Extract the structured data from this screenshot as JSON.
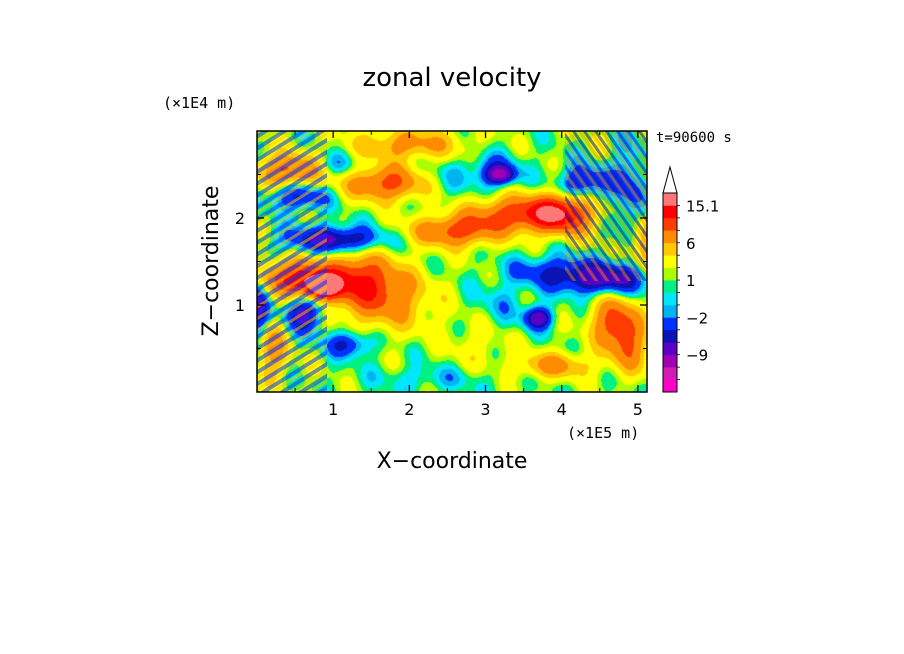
{
  "chart_data": {
    "type": "heatmap",
    "title": "zonal velocity",
    "xlabel": "X−coordinate",
    "ylabel": "Z−coordinate",
    "x_unit": "(×1E5 m)",
    "y_unit": "(×1E4 m)",
    "time_label": "t=90600 s",
    "xlim": [
      0,
      5.12
    ],
    "ylim": [
      0,
      3.0
    ],
    "x_ticks": [
      1,
      2,
      3,
      4,
      5
    ],
    "x_tick_labels": [
      "1",
      "2",
      "3",
      "4",
      "5"
    ],
    "y_ticks": [
      1,
      2
    ],
    "y_tick_labels": [
      "1",
      "2"
    ],
    "colorbar": {
      "levels": [
        -15,
        -12,
        -9,
        -6,
        -4,
        -2,
        -1,
        0,
        1,
        2,
        4,
        6,
        9,
        12,
        15.1
      ],
      "colors": [
        "#ff00c8",
        "#d21ab4",
        "#a000b4",
        "#5a00c8",
        "#0a14b4",
        "#0032ff",
        "#00b4f0",
        "#00e6ff",
        "#00f082",
        "#aaff00",
        "#ffff00",
        "#ffc800",
        "#ff8c00",
        "#ff3c00",
        "#ff0000",
        "#ff7878"
      ],
      "labels": [
        {
          "value": 15.1,
          "text": "15.1"
        },
        {
          "value": 6,
          "text": "6"
        },
        {
          "value": 1,
          "text": "1"
        },
        {
          "value": -2,
          "text": "−2"
        },
        {
          "value": -9,
          "text": "−9"
        }
      ],
      "extend_top": true
    },
    "features": [
      {
        "x": 0.0,
        "z": 1.0,
        "u": -9,
        "sx": 0.15,
        "sz": 0.35
      },
      {
        "x": 0.2,
        "z": 0.5,
        "u": 6,
        "sx": 0.2,
        "sz": 0.35
      },
      {
        "x": 0.5,
        "z": 1.3,
        "u": 12,
        "sx": 0.5,
        "sz": 0.2
      },
      {
        "x": 0.85,
        "z": 1.2,
        "u": 15.1,
        "sx": 0.2,
        "sz": 0.12
      },
      {
        "x": 1.3,
        "z": 1.3,
        "u": 9,
        "sx": 0.5,
        "sz": 0.3
      },
      {
        "x": 1.7,
        "z": 1.05,
        "u": 6,
        "sx": 0.6,
        "sz": 0.35
      },
      {
        "x": 1.0,
        "z": 1.75,
        "u": -9,
        "sx": 0.6,
        "sz": 0.15
      },
      {
        "x": 0.55,
        "z": 2.25,
        "u": -6,
        "sx": 0.4,
        "sz": 0.15
      },
      {
        "x": 0.45,
        "z": 2.55,
        "u": 9,
        "sx": 0.45,
        "sz": 0.18
      },
      {
        "x": 0.6,
        "z": 0.9,
        "u": -9,
        "sx": 0.25,
        "sz": 0.2
      },
      {
        "x": 1.2,
        "z": 0.55,
        "u": -6,
        "sx": 0.3,
        "sz": 0.15
      },
      {
        "x": 1.7,
        "z": 2.4,
        "u": 9,
        "sx": 0.55,
        "sz": 0.2
      },
      {
        "x": 1.0,
        "z": 2.6,
        "u": -4,
        "sx": 0.3,
        "sz": 0.15
      },
      {
        "x": 2.6,
        "z": 1.85,
        "u": 9,
        "sx": 0.55,
        "sz": 0.18
      },
      {
        "x": 2.0,
        "z": 2.85,
        "u": 6,
        "sx": 0.7,
        "sz": 0.18
      },
      {
        "x": 3.1,
        "z": 2.55,
        "u": -4,
        "sx": 0.35,
        "sz": 0.2
      },
      {
        "x": 3.2,
        "z": 2.5,
        "u": -9,
        "sx": 0.18,
        "sz": 0.1
      },
      {
        "x": 2.4,
        "z": 2.45,
        "u": -2,
        "sx": 0.4,
        "sz": 0.25
      },
      {
        "x": 3.4,
        "z": 2.05,
        "u": 9,
        "sx": 0.6,
        "sz": 0.2
      },
      {
        "x": 4.0,
        "z": 2.05,
        "u": 12,
        "sx": 0.4,
        "sz": 0.22
      },
      {
        "x": 3.2,
        "z": 1.0,
        "u": -2,
        "sx": 0.4,
        "sz": 0.3
      },
      {
        "x": 3.7,
        "z": 0.85,
        "u": -9,
        "sx": 0.18,
        "sz": 0.12
      },
      {
        "x": 4.55,
        "z": 1.3,
        "u": -9,
        "sx": 0.6,
        "sz": 0.18
      },
      {
        "x": 3.8,
        "z": 1.4,
        "u": -4,
        "sx": 0.5,
        "sz": 0.18
      },
      {
        "x": 4.3,
        "z": 2.4,
        "u": -6,
        "sx": 0.35,
        "sz": 0.2
      },
      {
        "x": 4.9,
        "z": 2.3,
        "u": -4,
        "sx": 0.2,
        "sz": 0.6
      },
      {
        "x": 4.7,
        "z": 0.8,
        "u": 9,
        "sx": 0.3,
        "sz": 0.3
      },
      {
        "x": 4.9,
        "z": 0.5,
        "u": 6,
        "sx": 0.25,
        "sz": 0.3
      },
      {
        "x": 3.9,
        "z": 0.3,
        "u": 6,
        "sx": 0.5,
        "sz": 0.15
      },
      {
        "x": 2.3,
        "z": 0.15,
        "u": -2,
        "sx": 0.8,
        "sz": 0.15
      },
      {
        "x": 2.9,
        "z": 0.55,
        "u": 2,
        "sx": 0.4,
        "sz": 0.3
      },
      {
        "x": 5.1,
        "z": 1.7,
        "u": 6,
        "sx": 0.2,
        "sz": 0.3
      }
    ]
  }
}
